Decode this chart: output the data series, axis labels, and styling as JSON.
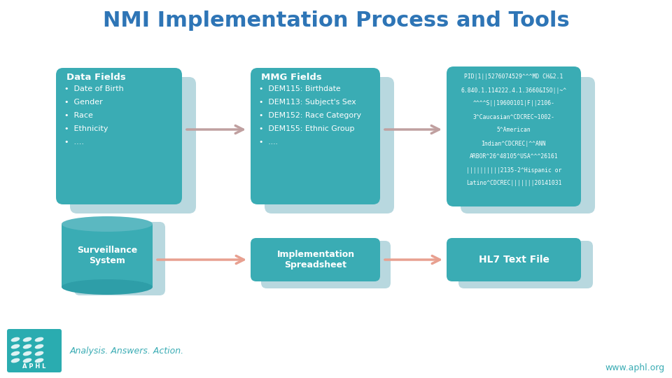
{
  "title": "NMI Implementation Process and Tools",
  "title_color": "#2E75B6",
  "title_fontsize": 22,
  "bg_color": "#FFFFFF",
  "teal_dark": "#3AACB4",
  "teal_light": "#B8D8DF",
  "teal_mid": "#5BB8C1",
  "arrow_color_top": "#C0A0A0",
  "arrow_color_bot": "#E8A090",
  "data_fields_title": "Data Fields",
  "data_fields_bullets": [
    "Date of Birth",
    "Gender",
    "Race",
    "Ethnicity",
    "...."
  ],
  "mmg_fields_title": "MMG Fields",
  "mmg_fields_bullets": [
    "DEM115: Birthdate",
    "DEM113: Subject's Sex",
    "DEM152: Race Category",
    "DEM155: Ethnic Group",
    "...."
  ],
  "hl7_lines": [
    "PID|1||5276074529^^^MD CH&2.1",
    "6.840.1.114222.4.1.3660&ISO||~^",
    "^^^^S||19600101|F||2106-",
    "3^Caucasian^CDCREC~1002-",
    "5^American",
    "Indian^CDCREC|^^ANN",
    "ARBOR^26^48105^USA^^^26161",
    "||||||||||2135-2^Hispanic or",
    "Latino^CDCREC|||||||20141031"
  ],
  "surv_label": "Surveillance\nSystem",
  "impl_label": "Implementation\nSpreadsheet",
  "hl7_label": "HL7 Text File",
  "footer_left": "Analysis. Answers. Action.",
  "footer_right": "www.aphl.org",
  "aphl_bg": "#2AACB0"
}
